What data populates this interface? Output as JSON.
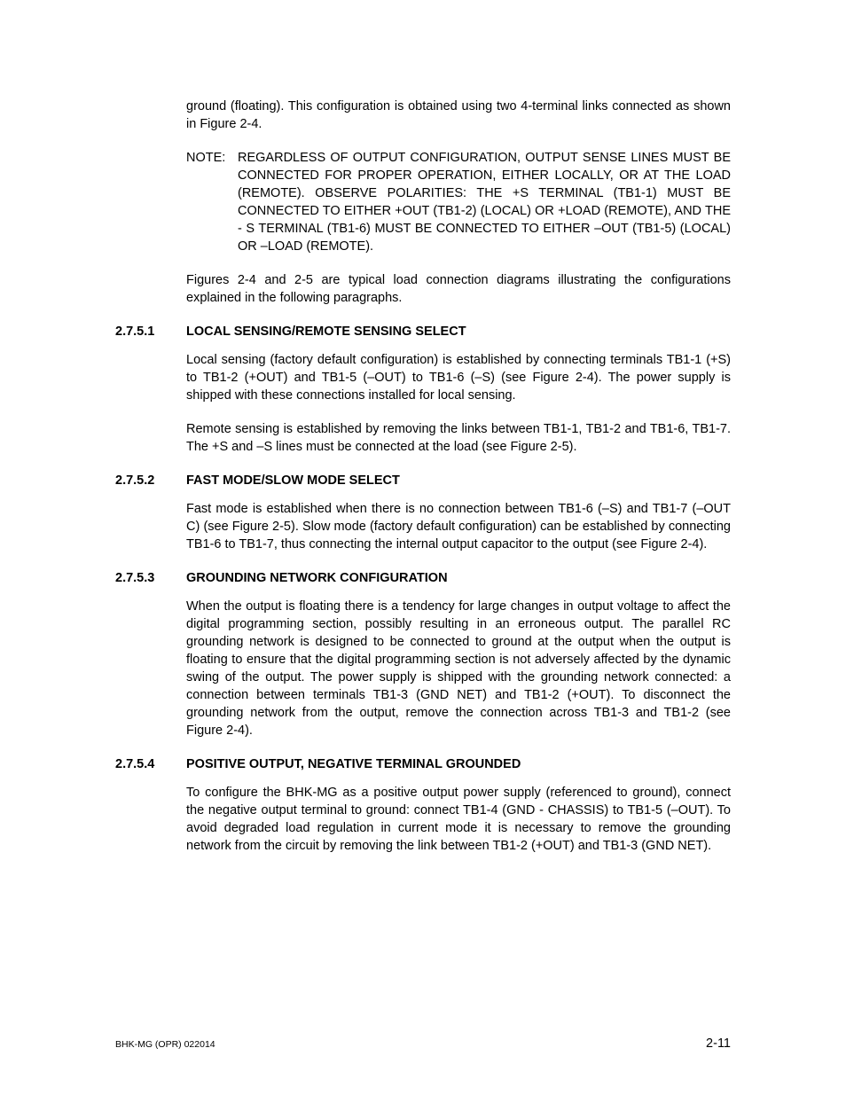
{
  "intro": {
    "p1": "ground (floating). This configuration is obtained using two 4-terminal links connected as shown in Figure 2-4.",
    "note_label": "NOTE:",
    "note_text": "REGARDLESS OF OUTPUT CONFIGURATION, OUTPUT SENSE LINES MUST BE CONNECTED FOR PROPER OPERATION, EITHER LOCALLY, OR AT THE LOAD (REMOTE). OBSERVE POLARITIES: THE +S TERMINAL (TB1-1) MUST BE CONNECTED TO EITHER +OUT (TB1-2) (LOCAL) OR +LOAD (REMOTE), AND THE - S TERMINAL (TB1-6) MUST BE CONNECTED TO EITHER –OUT (TB1-5) (LOCAL) OR –LOAD (REMOTE).",
    "p2": "Figures 2-4 and 2-5 are typical load connection diagrams illustrating the configurations explained in the following paragraphs."
  },
  "s1": {
    "num": "2.7.5.1",
    "title": "LOCAL SENSING/REMOTE SENSING SELECT",
    "p1": "Local sensing (factory default configuration) is established by connecting terminals TB1-1 (+S) to TB1-2 (+OUT) and TB1-5 (–OUT) to TB1-6 (–S) (see Figure 2-4). The power supply is shipped with these connections installed for local sensing.",
    "p2": "Remote sensing is established by removing the links between TB1-1, TB1-2 and TB1-6, TB1-7. The +S and –S lines must be connected at the load (see Figure 2-5)."
  },
  "s2": {
    "num": "2.7.5.2",
    "title": "FAST MODE/SLOW MODE SELECT",
    "p1": "Fast mode is established when there is no connection between TB1-6 (–S) and TB1-7 (–OUT C) (see Figure 2-5). Slow mode (factory default configuration) can be established by connecting TB1-6 to TB1-7, thus connecting the internal output capacitor to the output (see Figure 2-4)."
  },
  "s3": {
    "num": "2.7.5.3",
    "title": "GROUNDING NETWORK CONFIGURATION",
    "p1": "When the output is floating there is a tendency for large changes in output voltage to affect the digital programming section, possibly resulting in an erroneous output. The parallel RC grounding network is designed to be connected to ground at the output when the output is floating to ensure that the digital programming section is not adversely affected by the dynamic swing of the output. The power supply is shipped with the grounding network connected: a connection between terminals TB1-3 (GND NET) and TB1-2 (+OUT). To disconnect the grounding network from the output, remove the connection across TB1-3 and TB1-2 (see Figure 2-4)."
  },
  "s4": {
    "num": "2.7.5.4",
    "title": "POSITIVE OUTPUT, NEGATIVE TERMINAL GROUNDED",
    "p1": "To configure the BHK-MG as a positive output power supply (referenced to ground), connect the negative output terminal to ground: connect TB1-4 (GND - CHASSIS) to TB1-5 (–OUT). To avoid degraded load regulation in current mode it is necessary to remove the grounding network from the circuit by removing the link between TB1-2 (+OUT) and TB1-3 (GND NET)."
  },
  "footer": {
    "left": "BHK-MG (OPR) 022014",
    "right": "2-11"
  }
}
